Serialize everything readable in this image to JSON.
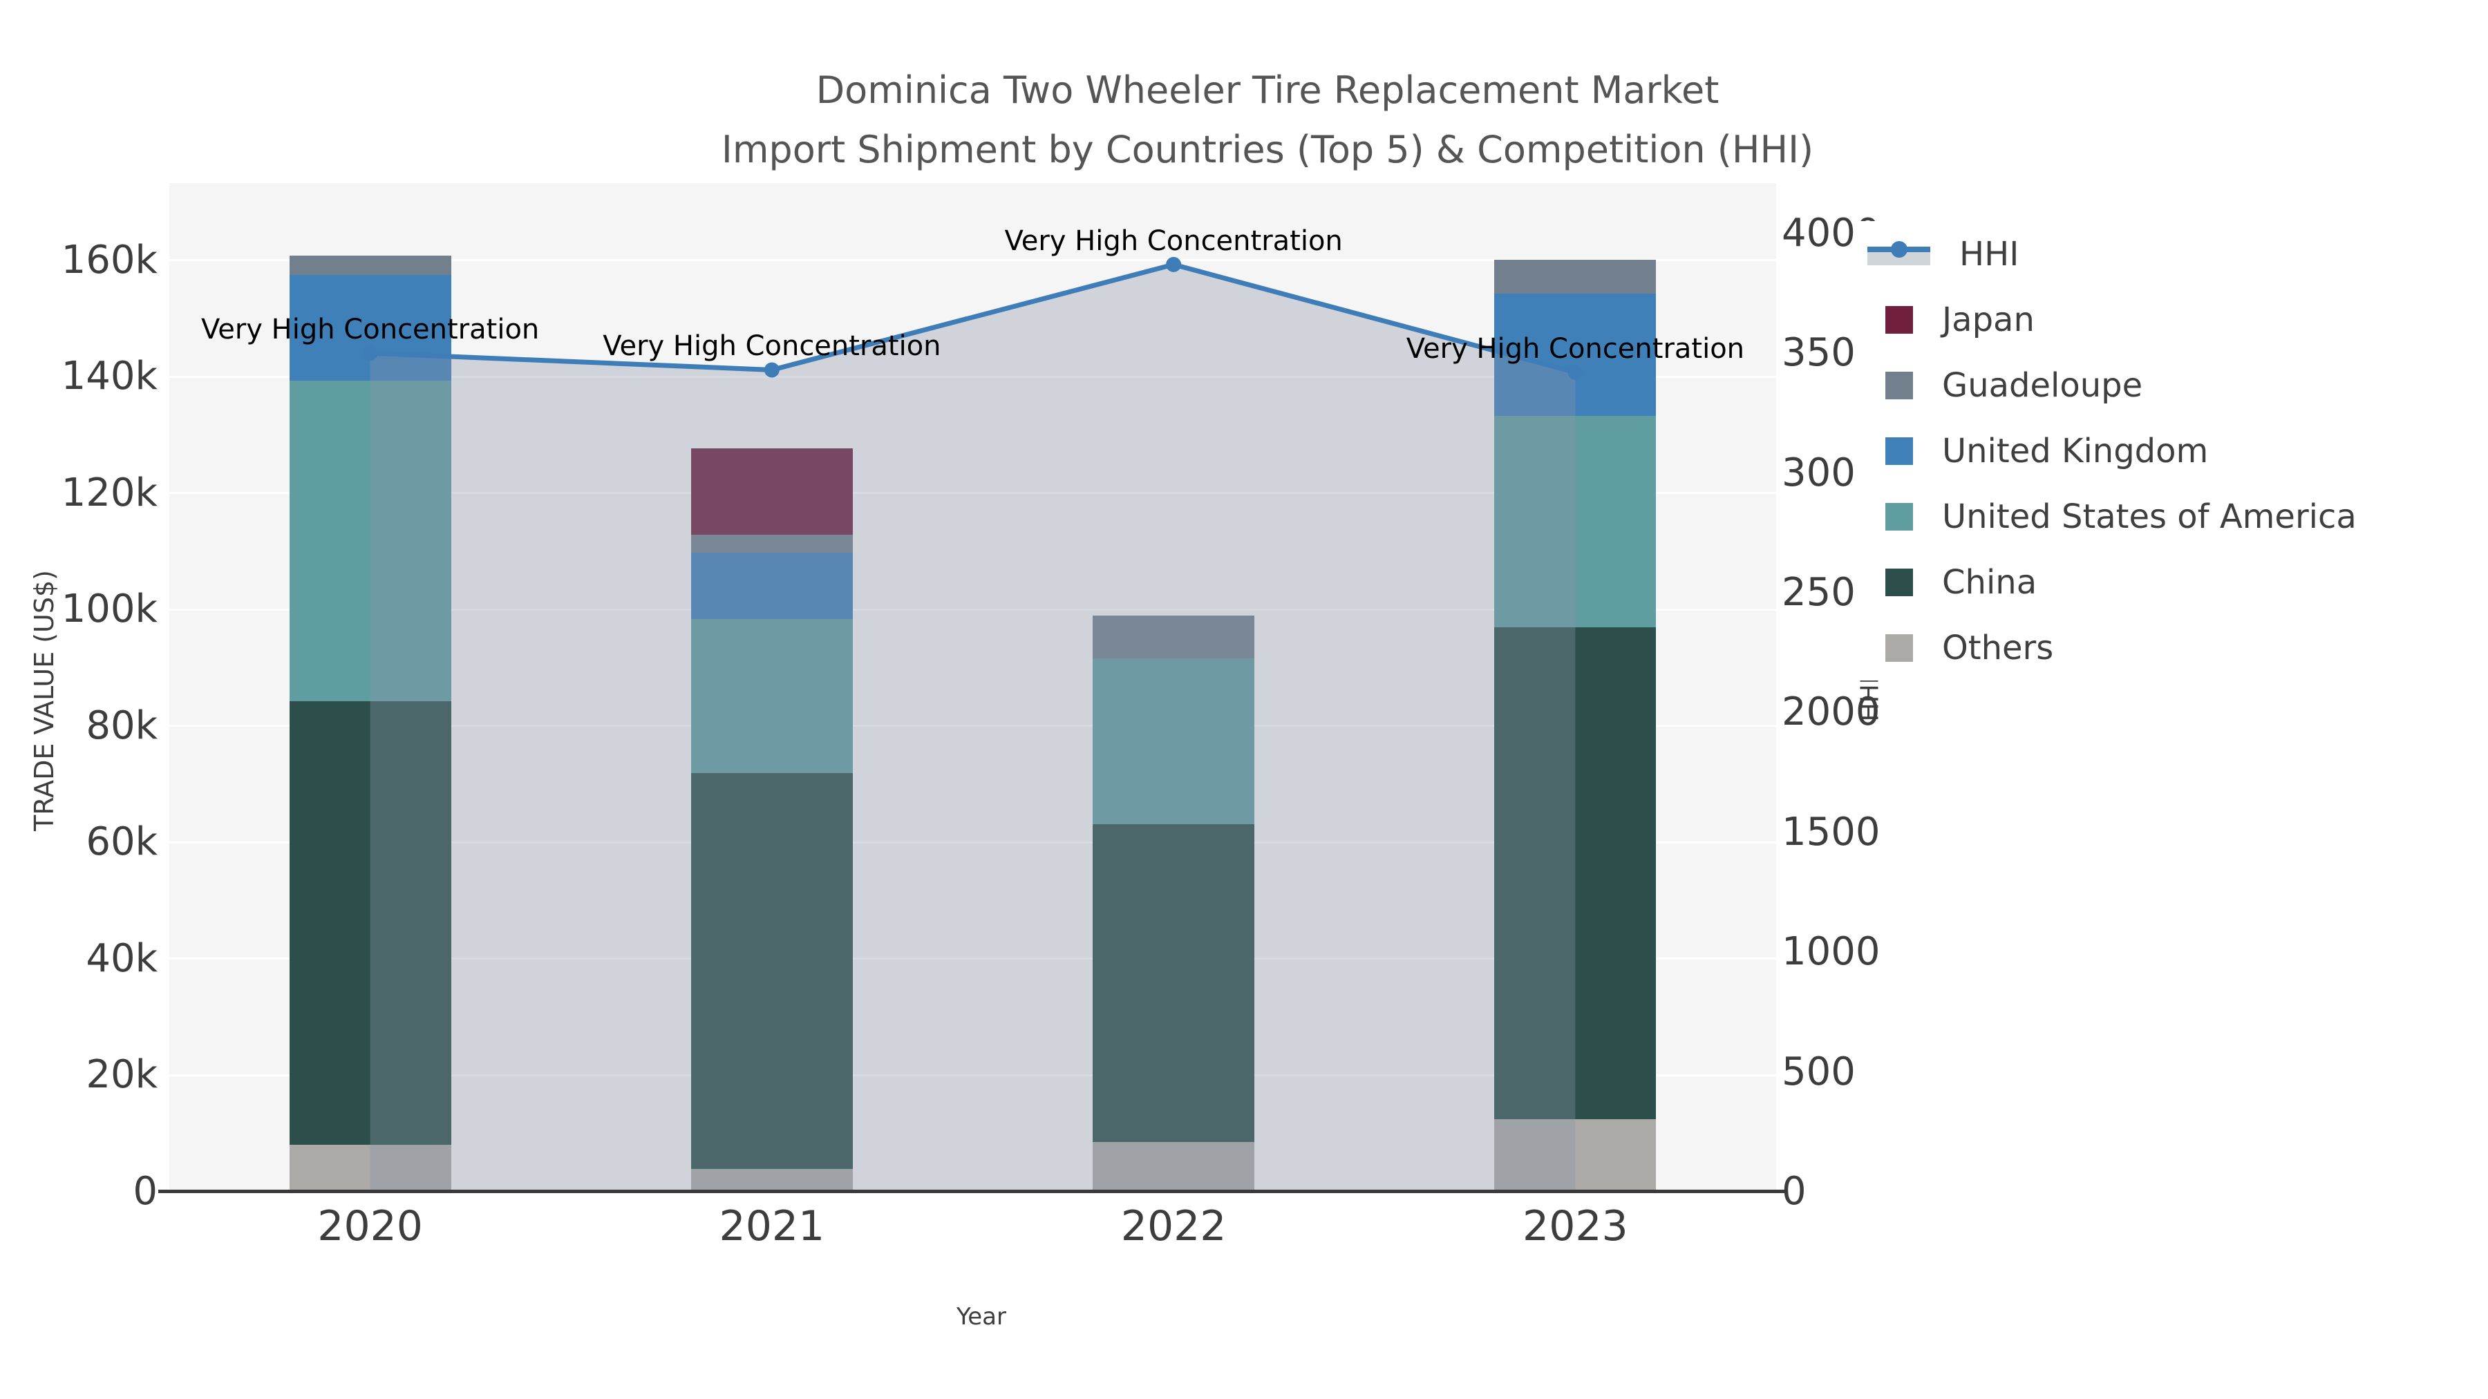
{
  "title": {
    "line1": "Dominica Two Wheeler Tire Replacement Market",
    "line2": "Import Shipment by Countries (Top 5) & Competition (HHI)"
  },
  "axes": {
    "x": {
      "title": "Year",
      "categories": [
        "2020",
        "2021",
        "2022",
        "2023"
      ]
    },
    "y_left": {
      "title": "TRADE VALUE (US$)",
      "ticks": [
        "0",
        "20k",
        "40k",
        "60k",
        "80k",
        "100k",
        "120k",
        "140k",
        "160k"
      ],
      "tick_values": [
        0,
        20000,
        40000,
        60000,
        80000,
        100000,
        120000,
        140000,
        160000
      ]
    },
    "y_right": {
      "title": "HHI",
      "ticks": [
        "0",
        "500",
        "1000",
        "1500",
        "2000",
        "2500",
        "3000",
        "3500",
        "4000"
      ],
      "tick_values": [
        0,
        500,
        1000,
        1500,
        2000,
        2500,
        3000,
        3500,
        4000
      ]
    }
  },
  "legend": {
    "items": [
      {
        "label": "HHI",
        "type": "line",
        "color": "#3e7db8"
      },
      {
        "label": "Japan",
        "type": "swatch",
        "color": "#701f3e"
      },
      {
        "label": "Guadeloupe",
        "type": "swatch",
        "color": "#72808e"
      },
      {
        "label": "United Kingdom",
        "type": "swatch",
        "color": "#4080b9"
      },
      {
        "label": "United States of America",
        "type": "swatch",
        "color": "#5f9da1"
      },
      {
        "label": "China",
        "type": "swatch",
        "color": "#2d4f4b"
      },
      {
        "label": "Others",
        "type": "swatch",
        "color": "#abaaa7"
      }
    ]
  },
  "annotations": [
    {
      "category": "2020",
      "text": "Very High Concentration"
    },
    {
      "category": "2021",
      "text": "Very High Concentration"
    },
    {
      "category": "2022",
      "text": "Very High Concentration"
    },
    {
      "category": "2023",
      "text": "Very High Concentration"
    }
  ],
  "chart_data": {
    "type": "bar",
    "subtype": "stacked-bars-with-line-overlay",
    "title": "Dominica Two Wheeler Tire Replacement Market Import Shipment by Countries (Top 5) & Competition (HHI)",
    "xlabel": "Year",
    "ylabel": "TRADE VALUE (US$)",
    "y2label": "HHI",
    "categories": [
      "2020",
      "2021",
      "2022",
      "2023"
    ],
    "series": [
      {
        "name": "Others",
        "type": "bar",
        "color": "#abaaa7",
        "values": [
          8100,
          3900,
          8500,
          12500
        ]
      },
      {
        "name": "China",
        "type": "bar",
        "color": "#2d4f4b",
        "values": [
          76100,
          68000,
          54600,
          84500
        ]
      },
      {
        "name": "United States of America",
        "type": "bar",
        "color": "#5f9da1",
        "values": [
          55100,
          26500,
          28500,
          36300
        ]
      },
      {
        "name": "United Kingdom",
        "type": "bar",
        "color": "#4080b9",
        "values": [
          18200,
          11400,
          0,
          20900
        ]
      },
      {
        "name": "Guadeloupe",
        "type": "bar",
        "color": "#72808e",
        "values": [
          3300,
          3100,
          7400,
          5900
        ]
      },
      {
        "name": "Japan",
        "type": "bar",
        "color": "#701f3e",
        "values": [
          0,
          14800,
          0,
          0
        ]
      }
    ],
    "bar_totals": [
      160800,
      127700,
      99000,
      160100
    ],
    "line_series": {
      "name": "HHI",
      "axis": "right",
      "color": "#3e7db8",
      "fill_color": "rgba(137,150,166,0.34)",
      "values": [
        3500,
        3430,
        3870,
        3420
      ]
    },
    "ylim": [
      0,
      173000
    ],
    "y2lim": [
      0,
      4210
    ],
    "grid": true,
    "legend_position": "right",
    "annotation_text": "Very High Concentration"
  },
  "colors": {
    "background": "#ffffff",
    "plot_background": "#f5f5f5",
    "gridline": "#ffffff",
    "axis_line": "#3a3a3a",
    "tick_text": "#3d3d3d",
    "title_text": "#555555",
    "annotation_text": "#000000",
    "hhi_line": "#3e7db8",
    "hhi_fill": "rgba(137,150,166,0.34)"
  }
}
